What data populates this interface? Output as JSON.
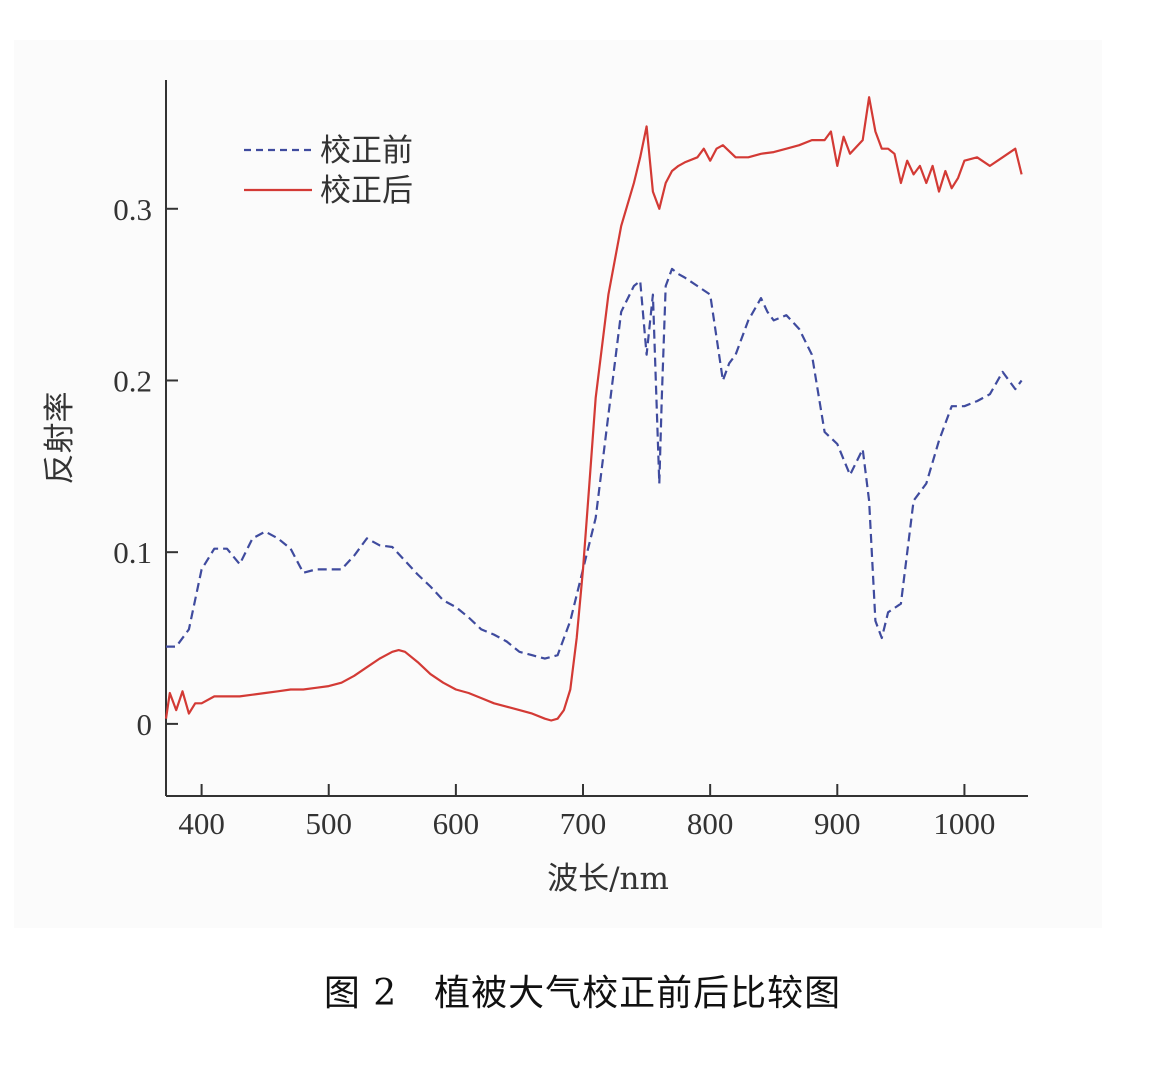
{
  "caption": "图 2　植被大气校正前后比较图",
  "chart_data": {
    "type": "line",
    "title": "",
    "xlabel": "波长/nm",
    "ylabel": "反射率",
    "xlim": [
      372,
      1050
    ],
    "ylim": [
      -0.042,
      0.375
    ],
    "xticks": [
      400,
      500,
      600,
      700,
      800,
      900,
      1000
    ],
    "xtick_labels": [
      "400",
      "500",
      "600",
      "700",
      "800",
      "900",
      "1000"
    ],
    "yticks": [
      0,
      0.1,
      0.2,
      0.3
    ],
    "ytick_labels": [
      "0",
      "0.1",
      "0.2",
      "0.3"
    ],
    "grid": false,
    "legend": {
      "position": "top-left"
    },
    "series": [
      {
        "name": "校正前",
        "style": "dashed",
        "color": "#3f4b9e",
        "x": [
          372,
          380,
          390,
          400,
          410,
          420,
          430,
          440,
          450,
          460,
          470,
          480,
          490,
          500,
          510,
          520,
          530,
          540,
          550,
          560,
          570,
          580,
          590,
          600,
          610,
          620,
          630,
          640,
          650,
          660,
          670,
          680,
          690,
          700,
          710,
          720,
          730,
          740,
          745,
          750,
          755,
          760,
          762,
          765,
          770,
          775,
          780,
          790,
          800,
          810,
          815,
          820,
          830,
          840,
          845,
          850,
          860,
          870,
          880,
          890,
          900,
          910,
          920,
          925,
          930,
          935,
          940,
          950,
          960,
          970,
          980,
          990,
          1000,
          1010,
          1020,
          1030,
          1040,
          1045
        ],
        "y": [
          0.045,
          0.045,
          0.055,
          0.09,
          0.102,
          0.102,
          0.093,
          0.108,
          0.112,
          0.108,
          0.102,
          0.088,
          0.09,
          0.09,
          0.09,
          0.098,
          0.108,
          0.104,
          0.103,
          0.095,
          0.087,
          0.08,
          0.072,
          0.068,
          0.062,
          0.055,
          0.052,
          0.048,
          0.042,
          0.04,
          0.038,
          0.04,
          0.06,
          0.09,
          0.12,
          0.18,
          0.24,
          0.255,
          0.258,
          0.215,
          0.25,
          0.14,
          0.19,
          0.255,
          0.265,
          0.262,
          0.26,
          0.255,
          0.25,
          0.2,
          0.21,
          0.215,
          0.235,
          0.248,
          0.24,
          0.235,
          0.238,
          0.23,
          0.215,
          0.17,
          0.163,
          0.145,
          0.16,
          0.13,
          0.06,
          0.05,
          0.065,
          0.07,
          0.13,
          0.14,
          0.165,
          0.185,
          0.185,
          0.188,
          0.192,
          0.205,
          0.195,
          0.2
        ]
      },
      {
        "name": "校正后",
        "style": "solid",
        "color": "#d33a35",
        "x": [
          372,
          375,
          380,
          385,
          390,
          395,
          400,
          410,
          420,
          430,
          440,
          450,
          460,
          470,
          480,
          490,
          500,
          510,
          520,
          530,
          540,
          550,
          555,
          560,
          570,
          580,
          590,
          600,
          610,
          620,
          630,
          640,
          650,
          660,
          670,
          675,
          680,
          685,
          690,
          695,
          700,
          705,
          710,
          720,
          730,
          740,
          745,
          750,
          755,
          760,
          765,
          770,
          775,
          780,
          790,
          795,
          800,
          805,
          810,
          820,
          830,
          840,
          850,
          860,
          870,
          880,
          890,
          895,
          900,
          905,
          910,
          920,
          925,
          930,
          935,
          940,
          945,
          950,
          955,
          960,
          965,
          970,
          975,
          980,
          985,
          990,
          995,
          1000,
          1010,
          1020,
          1030,
          1040,
          1045
        ],
        "y": [
          0.003,
          0.018,
          0.008,
          0.019,
          0.006,
          0.012,
          0.012,
          0.016,
          0.016,
          0.016,
          0.017,
          0.018,
          0.019,
          0.02,
          0.02,
          0.021,
          0.022,
          0.024,
          0.028,
          0.033,
          0.038,
          0.042,
          0.043,
          0.042,
          0.036,
          0.029,
          0.024,
          0.02,
          0.018,
          0.015,
          0.012,
          0.01,
          0.008,
          0.006,
          0.003,
          0.002,
          0.003,
          0.008,
          0.02,
          0.05,
          0.09,
          0.14,
          0.19,
          0.25,
          0.29,
          0.315,
          0.33,
          0.348,
          0.31,
          0.3,
          0.315,
          0.322,
          0.325,
          0.327,
          0.33,
          0.335,
          0.328,
          0.335,
          0.337,
          0.33,
          0.33,
          0.332,
          0.333,
          0.335,
          0.337,
          0.34,
          0.34,
          0.345,
          0.325,
          0.342,
          0.332,
          0.34,
          0.365,
          0.345,
          0.335,
          0.335,
          0.332,
          0.315,
          0.328,
          0.32,
          0.325,
          0.315,
          0.325,
          0.31,
          0.322,
          0.312,
          0.318,
          0.328,
          0.33,
          0.325,
          0.33,
          0.335,
          0.32
        ]
      }
    ]
  }
}
